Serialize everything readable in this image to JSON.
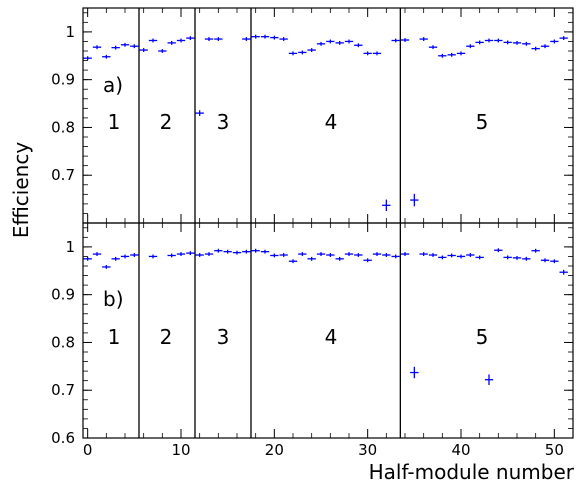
{
  "chart_data": {
    "type": "scatter",
    "xlabel": "Half-module number",
    "ylabel": "Efficiency",
    "xlim": [
      -0.5,
      52
    ],
    "xticks": [
      "0",
      "10",
      "20",
      "30",
      "40",
      "50"
    ],
    "marker_color": "#0000ff",
    "grid": false,
    "panels": [
      {
        "tag": "a)",
        "ylim": [
          0.6,
          1.05
        ],
        "yticks": [
          "0.6",
          "0.7",
          "0.8",
          "0.9",
          "1"
        ],
        "sector_boundaries": [
          5.5,
          11.5,
          17.5,
          33.5
        ],
        "sector_labels": [
          "1",
          "2",
          "3",
          "4",
          "5"
        ],
        "x": [
          0,
          1,
          2,
          3,
          4,
          5,
          6,
          7,
          8,
          9,
          10,
          11,
          12,
          13,
          14,
          15,
          16,
          17,
          18,
          19,
          20,
          21,
          22,
          23,
          24,
          25,
          26,
          27,
          28,
          29,
          30,
          31,
          32,
          33,
          34,
          35,
          36,
          37,
          38,
          39,
          40,
          41,
          42,
          43,
          44,
          45,
          46,
          47,
          48,
          49,
          50,
          51
        ],
        "y": [
          0.945,
          0.968,
          0.948,
          0.967,
          0.973,
          0.97,
          0.962,
          0.982,
          0.96,
          0.977,
          0.982,
          0.987,
          0.83,
          0.985,
          0.985,
          null,
          null,
          0.985,
          0.99,
          0.99,
          0.988,
          0.985,
          0.955,
          0.957,
          0.962,
          0.975,
          0.98,
          0.977,
          0.98,
          0.972,
          0.955,
          0.955,
          0.637,
          0.982,
          0.983,
          0.648,
          0.985,
          0.968,
          0.95,
          0.952,
          0.955,
          0.97,
          0.978,
          0.982,
          0.982,
          0.978,
          0.977,
          0.975,
          0.965,
          0.97,
          0.98,
          0.987
        ],
        "y_err": [
          0.004,
          0.004,
          0.004,
          0.004,
          0.004,
          0.004,
          0.004,
          0.004,
          0.004,
          0.004,
          0.004,
          0.004,
          0.006,
          0.004,
          0.004,
          null,
          null,
          0.004,
          0.004,
          0.004,
          0.004,
          0.004,
          0.004,
          0.004,
          0.004,
          0.004,
          0.004,
          0.004,
          0.004,
          0.004,
          0.004,
          0.004,
          0.012,
          0.004,
          0.004,
          0.013,
          0.004,
          0.004,
          0.004,
          0.004,
          0.004,
          0.004,
          0.004,
          0.004,
          0.004,
          0.004,
          0.004,
          0.004,
          0.004,
          0.004,
          0.004,
          0.004
        ]
      },
      {
        "tag": "b)",
        "ylim": [
          0.6,
          1.05
        ],
        "yticks": [
          "0.6",
          "0.7",
          "0.8",
          "0.9",
          "1"
        ],
        "sector_boundaries": [
          5.5,
          11.5,
          17.5,
          33.5
        ],
        "sector_labels": [
          "1",
          "2",
          "3",
          "4",
          "5"
        ],
        "x": [
          0,
          1,
          2,
          3,
          4,
          5,
          6,
          7,
          8,
          9,
          10,
          11,
          12,
          13,
          14,
          15,
          16,
          17,
          18,
          19,
          20,
          21,
          22,
          23,
          24,
          25,
          26,
          27,
          28,
          29,
          30,
          31,
          32,
          33,
          34,
          35,
          36,
          37,
          38,
          39,
          40,
          41,
          42,
          43,
          44,
          45,
          46,
          47,
          48,
          49,
          50,
          51
        ],
        "y": [
          0.975,
          0.985,
          0.958,
          0.975,
          0.98,
          0.983,
          null,
          0.98,
          null,
          0.982,
          0.985,
          0.987,
          0.983,
          0.985,
          0.992,
          0.99,
          0.988,
          0.99,
          0.992,
          0.99,
          0.982,
          0.983,
          0.97,
          0.985,
          0.975,
          0.985,
          0.983,
          0.975,
          0.985,
          0.983,
          0.972,
          0.985,
          0.983,
          0.98,
          0.985,
          0.737,
          0.985,
          0.983,
          0.978,
          0.982,
          0.98,
          0.983,
          0.978,
          0.722,
          0.993,
          0.978,
          0.977,
          0.975,
          0.992,
          0.972,
          0.97,
          0.947
        ],
        "y_err": [
          0.004,
          0.004,
          0.004,
          0.004,
          0.004,
          0.004,
          null,
          0.004,
          null,
          0.004,
          0.004,
          0.004,
          0.004,
          0.004,
          0.004,
          0.004,
          0.004,
          0.004,
          0.004,
          0.004,
          0.004,
          0.004,
          0.004,
          0.004,
          0.004,
          0.004,
          0.004,
          0.004,
          0.004,
          0.004,
          0.004,
          0.004,
          0.004,
          0.004,
          0.004,
          0.012,
          0.004,
          0.004,
          0.004,
          0.004,
          0.004,
          0.004,
          0.004,
          0.011,
          0.004,
          0.004,
          0.004,
          0.004,
          0.004,
          0.004,
          0.004,
          0.005
        ]
      }
    ]
  }
}
